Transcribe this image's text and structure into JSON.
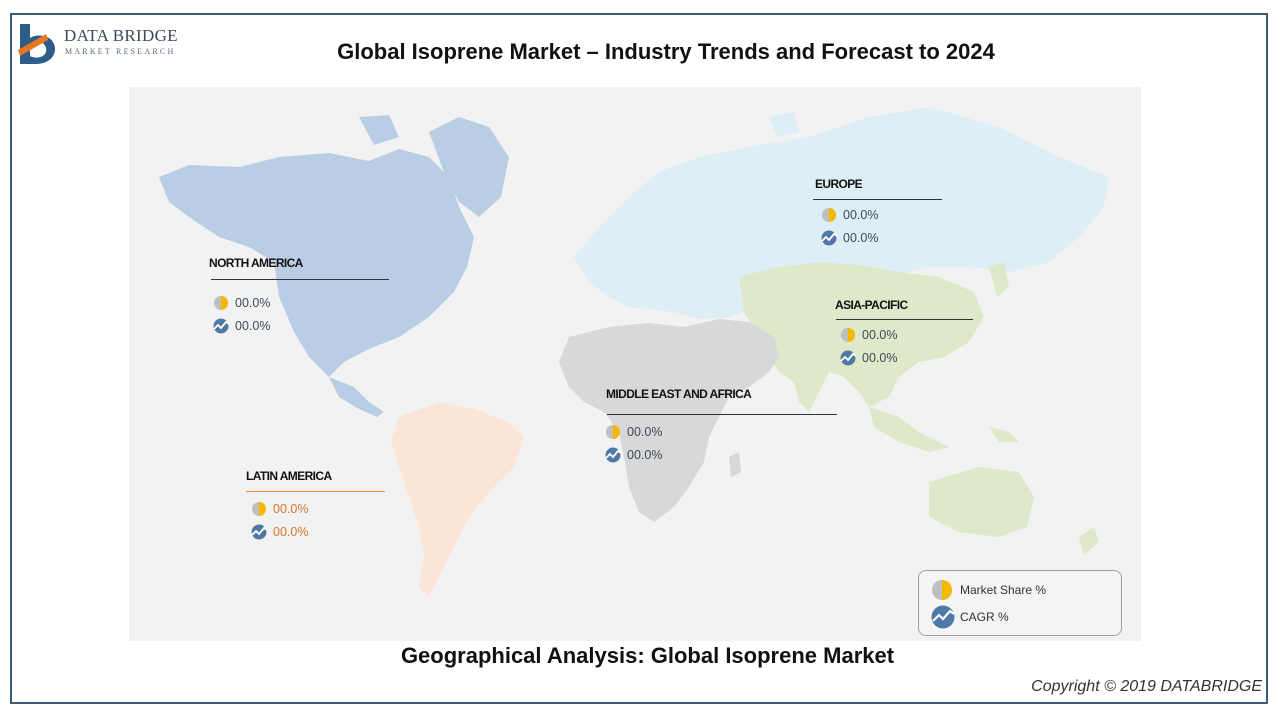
{
  "header": {
    "logo_line1": "DATA BRIDGE",
    "logo_line2": "MARKET RESEARCH",
    "title": "Global Isoprene Market – Industry Trends and Forecast to 2024"
  },
  "map": {
    "colors": {
      "north_america": "#b9cde4",
      "latin_america": "#fbe5d6",
      "europe": "#deeef6",
      "asia_pacific": "#dde9c9",
      "middle_east_africa": "#d8d8d8",
      "pie_yellow": "#f5b800",
      "pie_gray": "#bfbfbf",
      "cagr_blue": "#4e79a7"
    },
    "regions": [
      {
        "id": "north-america",
        "label": "NORTH AMERICA",
        "market_share": "00.0%",
        "cagr": "00.0%"
      },
      {
        "id": "europe",
        "label": "EUROPE",
        "market_share": "00.0%",
        "cagr": "00.0%"
      },
      {
        "id": "asia-pacific",
        "label": "ASIA-PACIFIC",
        "market_share": "00.0%",
        "cagr": "00.0%"
      },
      {
        "id": "middle-east-africa",
        "label": "MIDDLE EAST AND AFRICA",
        "market_share": "00.0%",
        "cagr": "00.0%"
      },
      {
        "id": "latin-america",
        "label": "LATIN AMERICA",
        "market_share": "00.0%",
        "cagr": "00.0%"
      }
    ]
  },
  "legend": {
    "market_share_label": "Market Share  %",
    "cagr_label": "CAGR  %",
    "market_share_icon": "pie-chart-icon",
    "cagr_icon": "trend-line-icon"
  },
  "footer": {
    "title": "Geographical Analysis: Global Isoprene Market",
    "copyright": "Copyright © 2019 DATABRIDGE"
  }
}
